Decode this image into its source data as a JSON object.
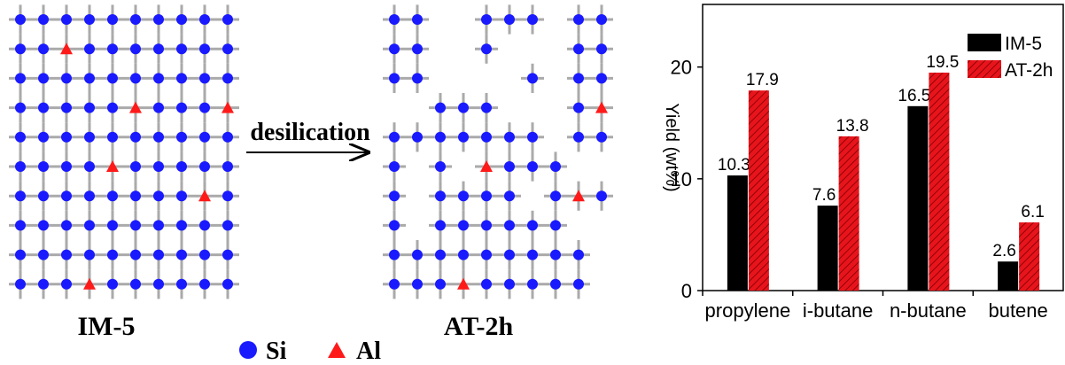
{
  "diagram": {
    "left_label": "IM-5",
    "right_label": "AT-2h",
    "arrow_label": "desilication",
    "legend": [
      {
        "label": "Si",
        "color": "#1a1aff"
      },
      {
        "label": "Al",
        "color": "#ff1a1a"
      }
    ]
  },
  "chart_data": {
    "type": "bar",
    "ylabel": "Yield (wt%)",
    "categories": [
      "propylene",
      "i-butane",
      "n-butane",
      "butene"
    ],
    "series": [
      {
        "name": "IM-5",
        "color": "#000000",
        "values": [
          10.3,
          7.6,
          16.5,
          2.6
        ]
      },
      {
        "name": "AT-2h",
        "color": "#e8141c",
        "hatch": true,
        "values": [
          17.9,
          13.8,
          19.5,
          6.1
        ]
      }
    ],
    "ylim": [
      0,
      25.6
    ],
    "yticks": [
      0,
      10,
      20
    ],
    "legend": "upper right"
  }
}
